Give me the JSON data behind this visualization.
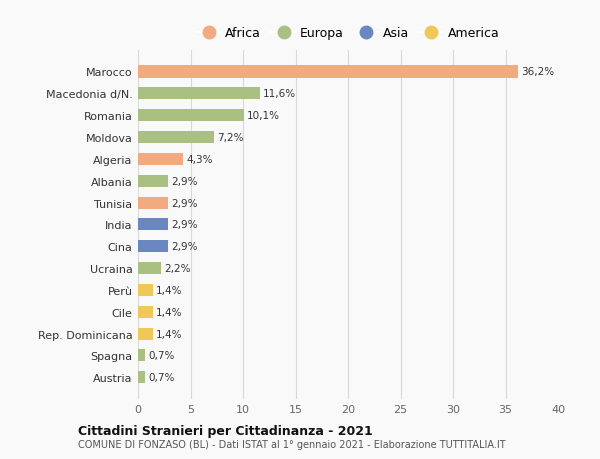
{
  "categories": [
    "Marocco",
    "Macedonia d/N.",
    "Romania",
    "Moldova",
    "Algeria",
    "Albania",
    "Tunisia",
    "India",
    "Cina",
    "Ucraina",
    "Perù",
    "Cile",
    "Rep. Dominicana",
    "Spagna",
    "Austria"
  ],
  "values": [
    36.2,
    11.6,
    10.1,
    7.2,
    4.3,
    2.9,
    2.9,
    2.9,
    2.9,
    2.2,
    1.4,
    1.4,
    1.4,
    0.7,
    0.7
  ],
  "labels": [
    "36,2%",
    "11,6%",
    "10,1%",
    "7,2%",
    "4,3%",
    "2,9%",
    "2,9%",
    "2,9%",
    "2,9%",
    "2,2%",
    "1,4%",
    "1,4%",
    "1,4%",
    "0,7%",
    "0,7%"
  ],
  "continents": [
    "Africa",
    "Europa",
    "Europa",
    "Europa",
    "Africa",
    "Europa",
    "Africa",
    "Asia",
    "Asia",
    "Europa",
    "America",
    "America",
    "America",
    "Europa",
    "Europa"
  ],
  "colors": {
    "Africa": "#F2AA80",
    "Europa": "#AABF82",
    "Asia": "#6B87C0",
    "America": "#F0C85A"
  },
  "legend_order": [
    "Africa",
    "Europa",
    "Asia",
    "America"
  ],
  "title": "Cittadini Stranieri per Cittadinanza - 2021",
  "subtitle": "COMUNE DI FONZASO (BL) - Dati ISTAT al 1° gennaio 2021 - Elaborazione TUTTITALIA.IT",
  "xlim": [
    0,
    40
  ],
  "xticks": [
    0,
    5,
    10,
    15,
    20,
    25,
    30,
    35,
    40
  ],
  "background_color": "#f9f9f9",
  "grid_color": "#d8d8d8"
}
